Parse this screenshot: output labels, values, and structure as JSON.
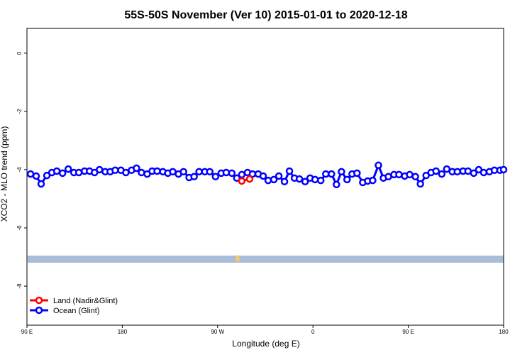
{
  "chart_data": {
    "type": "line",
    "title": "55S-50S November (Ver 10)   2015-01-01 to 2020-12-18",
    "x_label": "Longitude (deg E)",
    "y_label": "XCO2 - MLO trend (ppm)",
    "xlim": [
      90,
      540
    ],
    "xticks": [
      {
        "value": 90,
        "label": "90 E"
      },
      {
        "value": 180,
        "label": "180"
      },
      {
        "value": 270,
        "label": "90 W"
      },
      {
        "value": 360,
        "label": "0"
      },
      {
        "value": 450,
        "label": "90 E"
      },
      {
        "value": 540,
        "label": "180"
      }
    ],
    "ylim": [
      -9.34,
      0.85
    ],
    "yticks": [
      0,
      -2,
      -4,
      -6,
      -8
    ],
    "legend": "bottom-left",
    "series": [
      {
        "name": "Land (Nadir&Glint)",
        "color": "#ff0000",
        "x": [
          292.8,
          300.2
        ],
        "values": [
          -4.39,
          -4.32
        ]
      },
      {
        "name": "Ocean (Glint)",
        "color": "#0000ff",
        "x": [
          93.4,
          98.7,
          103.4,
          108.8,
          113.5,
          118.2,
          123.6,
          129.0,
          134.3,
          139.0,
          144.4,
          149.1,
          153.8,
          158.5,
          163.9,
          168.6,
          173.3,
          178.7,
          183.4,
          188.7,
          193.4,
          198.1,
          203.5,
          208.2,
          212.9,
          218.3,
          223.0,
          227.7,
          233.0,
          237.8,
          243.1,
          247.8,
          252.5,
          257.9,
          262.6,
          268.0,
          273.4,
          278.1,
          283.4,
          288.1,
          292.8,
          298.2,
          302.9,
          308.3,
          313.0,
          317.7,
          323.1,
          327.8,
          333.1,
          337.8,
          342.5,
          347.2,
          352.6,
          357.3,
          362.0,
          367.4,
          372.1,
          377.5,
          382.2,
          386.9,
          392.2,
          396.9,
          401.6,
          407.0,
          411.7,
          416.4,
          421.8,
          426.5,
          431.2,
          436.5,
          441.2,
          446.6,
          451.3,
          456.7,
          461.4,
          466.8,
          471.5,
          476.2,
          481.6,
          486.3,
          491.6,
          496.3,
          501.7,
          506.4,
          511.8,
          516.5,
          521.2,
          526.6,
          531.3,
          536.6,
          540
        ],
        "values": [
          -4.15,
          -4.22,
          -4.49,
          -4.2,
          -4.1,
          -4.05,
          -4.12,
          -3.98,
          -4.1,
          -4.1,
          -4.05,
          -4.05,
          -4.1,
          -4.0,
          -4.07,
          -4.07,
          -4.02,
          -4.02,
          -4.1,
          -4.02,
          -3.95,
          -4.1,
          -4.15,
          -4.05,
          -4.05,
          -4.07,
          -4.12,
          -4.07,
          -4.15,
          -4.07,
          -4.27,
          -4.24,
          -4.07,
          -4.07,
          -4.07,
          -4.24,
          -4.12,
          -4.1,
          -4.12,
          -4.29,
          -4.17,
          -4.1,
          -4.15,
          -4.15,
          -4.22,
          -4.37,
          -4.34,
          -4.22,
          -4.41,
          -4.05,
          -4.29,
          -4.32,
          -4.41,
          -4.29,
          -4.34,
          -4.37,
          -4.15,
          -4.15,
          -4.51,
          -4.07,
          -4.34,
          -4.15,
          -4.12,
          -4.44,
          -4.39,
          -4.37,
          -3.85,
          -4.29,
          -4.24,
          -4.17,
          -4.17,
          -4.22,
          -4.17,
          -4.24,
          -4.49,
          -4.2,
          -4.1,
          -4.05,
          -4.15,
          -3.98,
          -4.07,
          -4.07,
          -4.05,
          -4.05,
          -4.12,
          -4.0,
          -4.1,
          -4.07,
          -4.02,
          -4.02,
          -4.0
        ]
      }
    ]
  }
}
